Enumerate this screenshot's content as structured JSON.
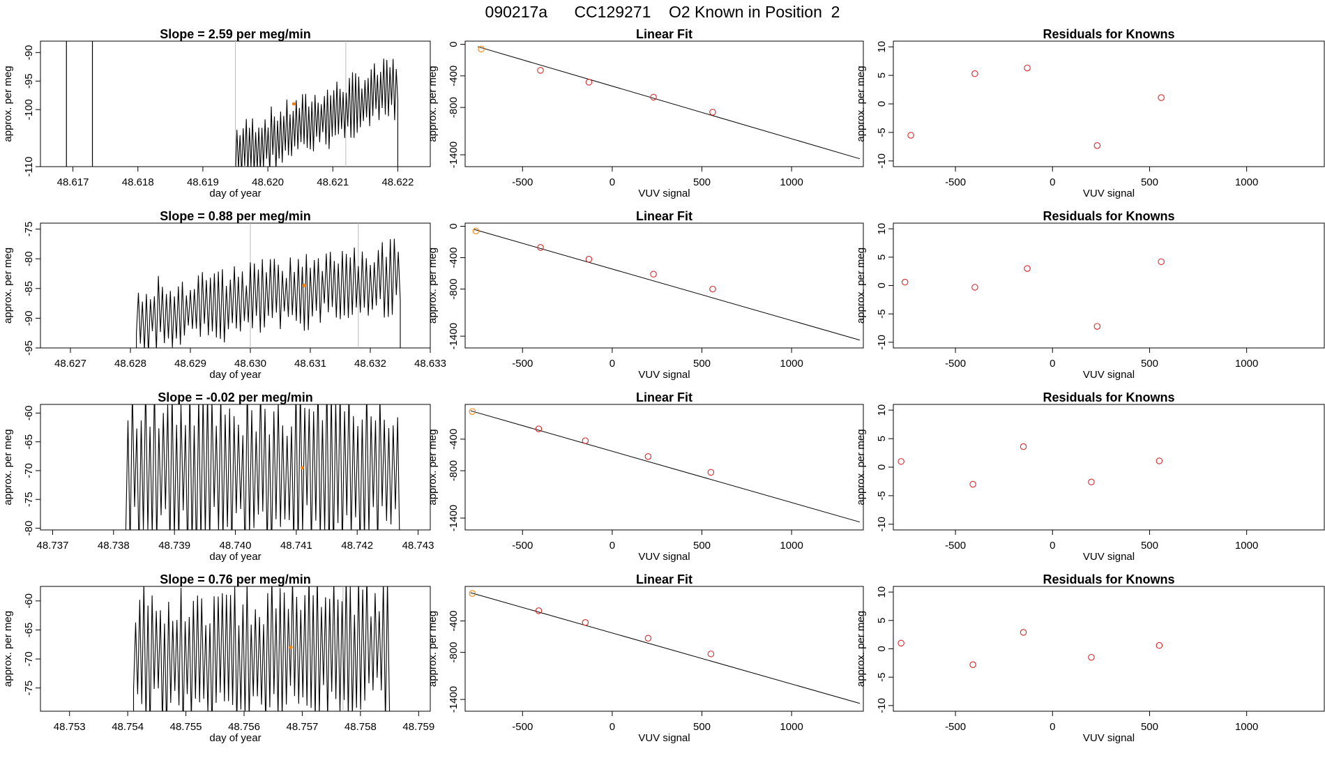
{
  "figure": {
    "run_id": "090217a",
    "cylinder": "CC129271",
    "subtitle": "O2 Known in Position  2"
  },
  "colors": {
    "known": "#ff7f00",
    "points": "#d62728",
    "line": "#000000",
    "axis": "#000000",
    "guide": "#bbbbbb"
  },
  "chart_data": [
    {
      "type": "line",
      "row": 1,
      "title": "Slope =  2.59  per meg/min",
      "xlabel": "day of year",
      "ylabel": "approx. per meg",
      "xlim": [
        48.6165,
        48.6225
      ],
      "ylim": [
        -110,
        -88
      ],
      "xticks": [
        "48.617",
        "48.618",
        "48.619",
        "48.620",
        "48.621",
        "48.622"
      ],
      "yticks": [
        -110,
        -100,
        -95,
        -90
      ],
      "vlines": [
        48.6169,
        48.6173
      ],
      "guides": [
        48.6195,
        48.6212
      ],
      "known": {
        "x": 48.6204,
        "y": -99
      },
      "segments": [
        {
          "x0": 48.6195,
          "x1": 48.622,
          "y0": -108,
          "y1": -96,
          "amp": 5,
          "n": 52
        }
      ]
    },
    {
      "type": "line",
      "row": 2,
      "title": "Slope =  0.88  per meg/min",
      "xlabel": "day of year",
      "ylabel": "approx. per meg",
      "xlim": [
        48.6265,
        48.633
      ],
      "ylim": [
        -95,
        -74
      ],
      "xticks": [
        "48.627",
        "48.628",
        "48.629",
        "48.630",
        "48.631",
        "48.632",
        "48.633"
      ],
      "yticks": [
        -95,
        -90,
        -85,
        -80,
        -75
      ],
      "vlines": [],
      "guides": [
        48.63,
        48.6318
      ],
      "known": {
        "x": 48.6309,
        "y": -84.5
      },
      "segments": [
        {
          "x0": 48.6281,
          "x1": 48.6325,
          "y0": -90,
          "y1": -83,
          "amp": 5.5,
          "n": 66
        }
      ]
    },
    {
      "type": "line",
      "row": 3,
      "title": "Slope =  -0.02  per meg/min",
      "xlabel": "day of year",
      "ylabel": "approx. per meg",
      "xlim": [
        48.7368,
        48.7432
      ],
      "ylim": [
        -80.3,
        -58.5
      ],
      "xticks": [
        "48.737",
        "48.738",
        "48.739",
        "48.740",
        "48.741",
        "48.742",
        "48.743"
      ],
      "yticks": [
        -80,
        -75,
        -70,
        -65,
        -60
      ],
      "vlines": [],
      "guides": [],
      "known": {
        "x": 48.7411,
        "y": -69.5
      },
      "segments": [
        {
          "x0": 48.7382,
          "x1": 48.7427,
          "y0": -70,
          "y1": -70,
          "amp": 13,
          "n": 62
        }
      ]
    },
    {
      "type": "line",
      "row": 4,
      "title": "Slope =  0.76  per meg/min",
      "xlabel": "day of year",
      "ylabel": "approx. per meg",
      "xlim": [
        48.7525,
        48.7592
      ],
      "ylim": [
        -79,
        -57.5
      ],
      "xticks": [
        "48.753",
        "48.754",
        "48.755",
        "48.756",
        "48.757",
        "48.758",
        "48.759"
      ],
      "yticks": [
        -75,
        -70,
        -65,
        -60
      ],
      "vlines": [],
      "guides": [
        48.7577
      ],
      "known": {
        "x": 48.7568,
        "y": -68
      },
      "segments": [
        {
          "x0": 48.7541,
          "x1": 48.7585,
          "y0": -70,
          "y1": -68,
          "amp": 11,
          "n": 62
        }
      ]
    },
    {
      "type": "scatter",
      "row": 1,
      "title": "Linear Fit",
      "xlabel": "VUV signal",
      "ylabel": "approx. per meg",
      "xlim": [
        -820,
        1400
      ],
      "ylim": [
        -1550,
        40
      ],
      "xticks": [
        -500,
        0,
        500,
        1000
      ],
      "yticks": [
        0,
        -400,
        -800,
        -1400
      ],
      "points": [
        [
          -730,
          -60
        ],
        [
          -400,
          -330
        ],
        [
          -130,
          -480
        ],
        [
          230,
          -670
        ],
        [
          560,
          -860
        ]
      ],
      "known_index": 0,
      "fit": {
        "x0": -750,
        "y0": -30,
        "x1": 1380,
        "y1": -1450
      }
    },
    {
      "type": "scatter",
      "row": 2,
      "title": "Linear Fit",
      "xlabel": "VUV signal",
      "ylabel": "approx. per meg",
      "xlim": [
        -820,
        1400
      ],
      "ylim": [
        -1550,
        40
      ],
      "xticks": [
        -500,
        0,
        500,
        1000
      ],
      "yticks": [
        0,
        -400,
        -800,
        -1400
      ],
      "points": [
        [
          -760,
          -60
        ],
        [
          -400,
          -270
        ],
        [
          -130,
          -420
        ],
        [
          230,
          -610
        ],
        [
          560,
          -800
        ]
      ],
      "known_index": 0,
      "fit": {
        "x0": -770,
        "y0": -40,
        "x1": 1380,
        "y1": -1450
      }
    },
    {
      "type": "scatter",
      "row": 3,
      "title": "Linear Fit",
      "xlabel": "VUV signal",
      "ylabel": "approx. per meg",
      "xlim": [
        -820,
        1400
      ],
      "ylim": [
        -1550,
        40
      ],
      "xticks": [
        -500,
        0,
        500,
        1000
      ],
      "yticks": [
        -400,
        -800,
        -1400
      ],
      "points": [
        [
          -780,
          -50
        ],
        [
          -410,
          -270
        ],
        [
          -150,
          -420
        ],
        [
          200,
          -620
        ],
        [
          550,
          -820
        ]
      ],
      "known_index": 0,
      "fit": {
        "x0": -790,
        "y0": -40,
        "x1": 1380,
        "y1": -1450
      }
    },
    {
      "type": "scatter",
      "row": 4,
      "title": "Linear Fit",
      "xlabel": "VUV signal",
      "ylabel": "approx. per meg",
      "xlim": [
        -820,
        1400
      ],
      "ylim": [
        -1550,
        40
      ],
      "xticks": [
        -500,
        0,
        500,
        1000
      ],
      "yticks": [
        -400,
        -800,
        -1400
      ],
      "points": [
        [
          -780,
          -50
        ],
        [
          -410,
          -270
        ],
        [
          -150,
          -420
        ],
        [
          200,
          -620
        ],
        [
          550,
          -820
        ]
      ],
      "known_index": 0,
      "fit": {
        "x0": -790,
        "y0": -40,
        "x1": 1380,
        "y1": -1450
      }
    },
    {
      "type": "scatter",
      "row": 1,
      "title": "Residuals for Knowns",
      "xlabel": "VUV signal",
      "ylabel": "approx. per meg",
      "xlim": [
        -820,
        1400
      ],
      "ylim": [
        -11,
        11
      ],
      "xticks": [
        -500,
        0,
        500,
        1000
      ],
      "yticks": [
        10,
        5,
        0,
        -5,
        -10
      ],
      "points": [
        [
          -730,
          -5.5
        ],
        [
          -400,
          5.3
        ],
        [
          -130,
          6.3
        ],
        [
          230,
          -7.3
        ],
        [
          560,
          1.1
        ]
      ]
    },
    {
      "type": "scatter",
      "row": 2,
      "title": "Residuals for Knowns",
      "xlabel": "VUV signal",
      "ylabel": "approx. per meg",
      "xlim": [
        -820,
        1400
      ],
      "ylim": [
        -11,
        11
      ],
      "xticks": [
        -500,
        0,
        500,
        1000
      ],
      "yticks": [
        10,
        5,
        0,
        -5,
        -10
      ],
      "points": [
        [
          -760,
          0.6
        ],
        [
          -400,
          -0.3
        ],
        [
          -130,
          3.0
        ],
        [
          230,
          -7.2
        ],
        [
          560,
          4.2
        ]
      ]
    },
    {
      "type": "scatter",
      "row": 3,
      "title": "Residuals for Knowns",
      "xlabel": "VUV signal",
      "ylabel": "approx. per meg",
      "xlim": [
        -820,
        1400
      ],
      "ylim": [
        -11,
        11
      ],
      "xticks": [
        -500,
        0,
        500,
        1000
      ],
      "yticks": [
        10,
        5,
        0,
        -5,
        -10
      ],
      "points": [
        [
          -780,
          1.0
        ],
        [
          -410,
          -3.0
        ],
        [
          -150,
          3.6
        ],
        [
          200,
          -2.6
        ],
        [
          550,
          1.1
        ]
      ]
    },
    {
      "type": "scatter",
      "row": 4,
      "title": "Residuals for Knowns",
      "xlabel": "VUV signal",
      "ylabel": "approx. per meg",
      "xlim": [
        -820,
        1400
      ],
      "ylim": [
        -11,
        11
      ],
      "xticks": [
        -500,
        0,
        500,
        1000
      ],
      "yticks": [
        10,
        5,
        0,
        -5,
        -10
      ],
      "points": [
        [
          -780,
          1.0
        ],
        [
          -410,
          -2.8
        ],
        [
          -150,
          2.9
        ],
        [
          200,
          -1.5
        ],
        [
          550,
          0.6
        ]
      ]
    }
  ]
}
